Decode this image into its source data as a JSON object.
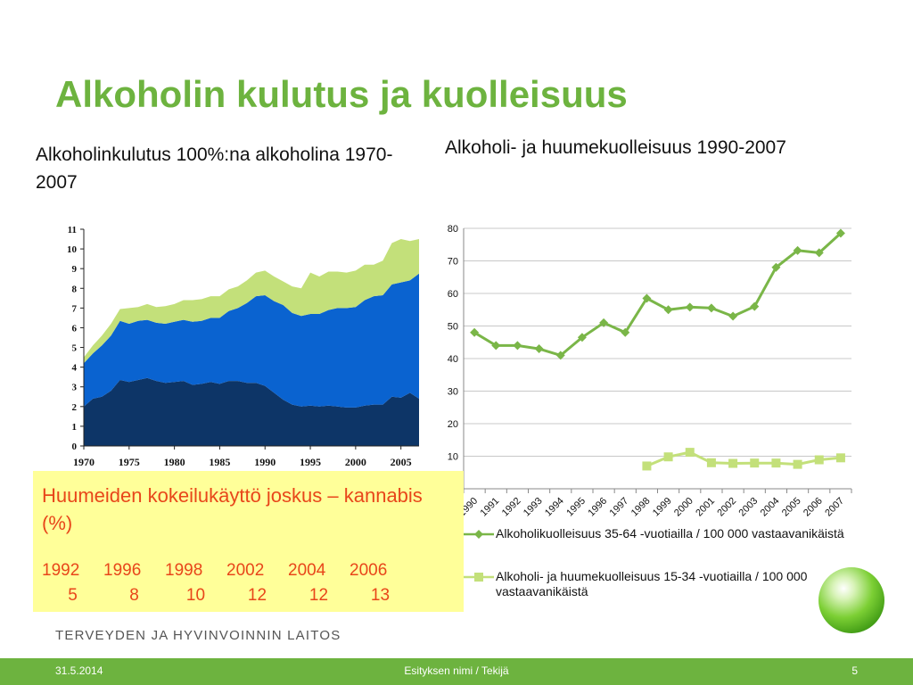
{
  "slide": {
    "title": "Alkoholin kulutus ja kuolleisuus",
    "left_subtitle": "Alkoholinkulutus 100%:na alkoholina 1970-2007",
    "right_subtitle": "Alkoholi- ja huumekuolleisuus 1990-2007",
    "brand": "TERVEYDEN JA HYVINVOINNIN LAITOS",
    "footer_date": "31.5.2014",
    "footer_center": "Esityksen nimi / Tekijä",
    "footer_page": "5"
  },
  "cannabis_box": {
    "title": "Huumeiden kokeilukäyttö joskus – kannabis (%)",
    "years": [
      "1992",
      "1996",
      "1998",
      "2002",
      "2004",
      "2006"
    ],
    "values": [
      "5",
      "8",
      "10",
      "12",
      "12",
      "13"
    ]
  },
  "colors": {
    "title_green": "#6db33f",
    "area_dark": "#0d3567",
    "area_blue": "#0a63d0",
    "area_light": "#c3e07a",
    "line_green": "#7ab648",
    "line_light": "#c3e07a",
    "box_yellow": "#ffff99",
    "box_text": "#e8461a"
  },
  "chart_data": [
    {
      "type": "area",
      "stacked": true,
      "x": [
        1970,
        1971,
        1972,
        1973,
        1974,
        1975,
        1976,
        1977,
        1978,
        1979,
        1980,
        1981,
        1982,
        1983,
        1984,
        1985,
        1986,
        1987,
        1988,
        1989,
        1990,
        1991,
        1992,
        1993,
        1994,
        1995,
        1996,
        1997,
        1998,
        1999,
        2000,
        2001,
        2002,
        2003,
        2004,
        2005,
        2006,
        2007
      ],
      "x_tick_labels": [
        "1970",
        "1975",
        "1980",
        "1985",
        "1990",
        "1995",
        "2000",
        "2005"
      ],
      "y_tick_labels": [
        "0",
        "1",
        "2",
        "3",
        "4",
        "5",
        "6",
        "7",
        "8",
        "9",
        "10",
        "11"
      ],
      "ylim": [
        0,
        11
      ],
      "series": [
        {
          "color": "#0d3567",
          "values": [
            2.0,
            2.4,
            2.5,
            2.8,
            3.35,
            3.25,
            3.35,
            3.45,
            3.3,
            3.2,
            3.25,
            3.3,
            3.1,
            3.15,
            3.25,
            3.15,
            3.3,
            3.3,
            3.2,
            3.2,
            3.05,
            2.7,
            2.35,
            2.1,
            2.0,
            2.05,
            2.0,
            2.05,
            2.0,
            1.95,
            1.95,
            2.05,
            2.1,
            2.1,
            2.5,
            2.45,
            2.7,
            2.4
          ]
        },
        {
          "color": "#0a63d0",
          "values": [
            2.2,
            2.3,
            2.6,
            2.8,
            3.0,
            2.95,
            3.0,
            2.95,
            2.95,
            3.0,
            3.05,
            3.1,
            3.2,
            3.2,
            3.25,
            3.35,
            3.55,
            3.7,
            4.05,
            4.4,
            4.6,
            4.65,
            4.8,
            4.65,
            4.6,
            4.65,
            4.7,
            4.85,
            5.0,
            5.05,
            5.1,
            5.35,
            5.5,
            5.55,
            5.7,
            5.85,
            5.7,
            6.35
          ]
        },
        {
          "color": "#c3e07a",
          "values": [
            0.3,
            0.4,
            0.5,
            0.6,
            0.6,
            0.8,
            0.7,
            0.8,
            0.8,
            0.9,
            0.9,
            1.0,
            1.1,
            1.1,
            1.1,
            1.1,
            1.1,
            1.1,
            1.15,
            1.2,
            1.25,
            1.25,
            1.2,
            1.35,
            1.4,
            2.1,
            1.9,
            1.95,
            1.85,
            1.8,
            1.85,
            1.8,
            1.6,
            1.75,
            2.1,
            2.2,
            2.0,
            1.75
          ]
        }
      ]
    },
    {
      "type": "line",
      "categories": [
        "1990",
        "1991",
        "1992",
        "1993",
        "1994",
        "1995",
        "1996",
        "1997",
        "1998",
        "1999",
        "2000",
        "2001",
        "2002",
        "2003",
        "2004",
        "2005",
        "2006",
        "2007"
      ],
      "ylim": [
        0,
        80
      ],
      "y_tick_labels": [
        "10",
        "20",
        "30",
        "40",
        "50",
        "60",
        "70",
        "80"
      ],
      "grid": true,
      "legend_position": "bottom",
      "series": [
        {
          "name": "Alkoholikuolleisuus 35-64 -vuotiailla / 100 000 vastaavanikäistä",
          "marker": "diamond",
          "color": "#7ab648",
          "values": [
            48,
            44,
            44,
            43,
            41,
            46.5,
            51,
            48,
            58.5,
            55,
            55.8,
            55.5,
            53,
            56,
            68,
            73.2,
            72.5,
            78.5
          ]
        },
        {
          "name": "Alkoholi- ja huumekuolleisuus 15-34 -vuotiailla / 100 000 vastaavanikäistä",
          "marker": "square",
          "color": "#c3e07a",
          "values": [
            null,
            null,
            null,
            null,
            null,
            null,
            null,
            null,
            7,
            9.8,
            11.2,
            8,
            7.8,
            7.9,
            7.9,
            7.5,
            8.9,
            9.5
          ]
        }
      ]
    }
  ]
}
